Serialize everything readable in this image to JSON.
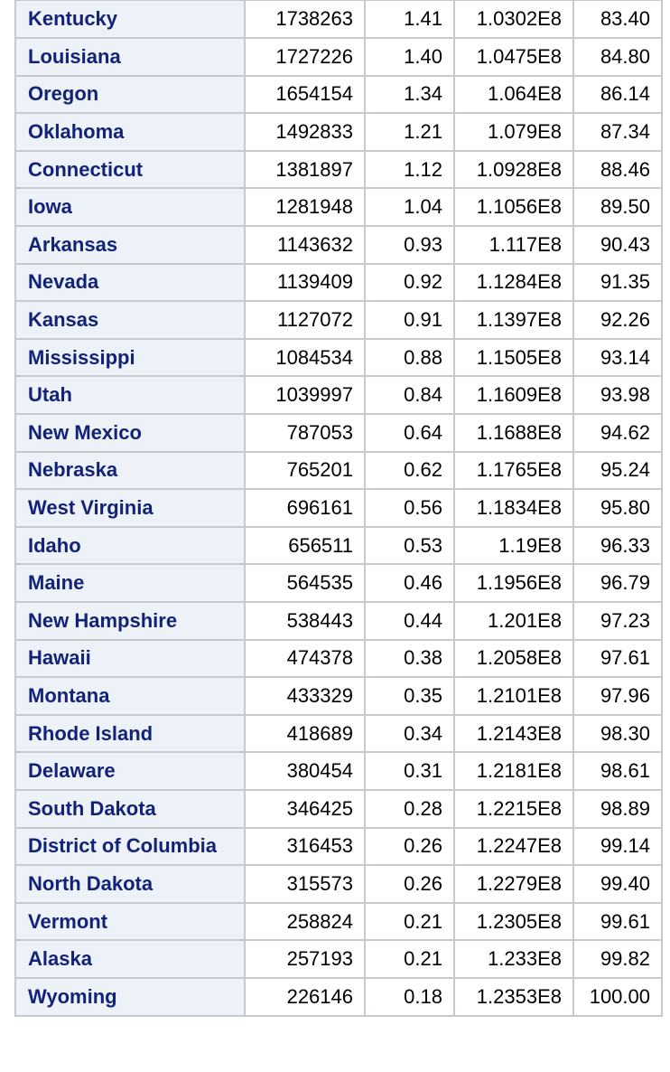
{
  "table": {
    "rows": [
      {
        "state": "Kentucky",
        "frequency": "1738263",
        "percent": "1.41",
        "cumulative_frequency": "1.0302E8",
        "cumulative_percent": "83.40"
      },
      {
        "state": "Louisiana",
        "frequency": "1727226",
        "percent": "1.40",
        "cumulative_frequency": "1.0475E8",
        "cumulative_percent": "84.80"
      },
      {
        "state": "Oregon",
        "frequency": "1654154",
        "percent": "1.34",
        "cumulative_frequency": "1.064E8",
        "cumulative_percent": "86.14"
      },
      {
        "state": "Oklahoma",
        "frequency": "1492833",
        "percent": "1.21",
        "cumulative_frequency": "1.079E8",
        "cumulative_percent": "87.34"
      },
      {
        "state": "Connecticut",
        "frequency": "1381897",
        "percent": "1.12",
        "cumulative_frequency": "1.0928E8",
        "cumulative_percent": "88.46"
      },
      {
        "state": "Iowa",
        "frequency": "1281948",
        "percent": "1.04",
        "cumulative_frequency": "1.1056E8",
        "cumulative_percent": "89.50"
      },
      {
        "state": "Arkansas",
        "frequency": "1143632",
        "percent": "0.93",
        "cumulative_frequency": "1.117E8",
        "cumulative_percent": "90.43"
      },
      {
        "state": "Nevada",
        "frequency": "1139409",
        "percent": "0.92",
        "cumulative_frequency": "1.1284E8",
        "cumulative_percent": "91.35"
      },
      {
        "state": "Kansas",
        "frequency": "1127072",
        "percent": "0.91",
        "cumulative_frequency": "1.1397E8",
        "cumulative_percent": "92.26"
      },
      {
        "state": "Mississippi",
        "frequency": "1084534",
        "percent": "0.88",
        "cumulative_frequency": "1.1505E8",
        "cumulative_percent": "93.14"
      },
      {
        "state": "Utah",
        "frequency": "1039997",
        "percent": "0.84",
        "cumulative_frequency": "1.1609E8",
        "cumulative_percent": "93.98"
      },
      {
        "state": "New Mexico",
        "frequency": "787053",
        "percent": "0.64",
        "cumulative_frequency": "1.1688E8",
        "cumulative_percent": "94.62"
      },
      {
        "state": "Nebraska",
        "frequency": "765201",
        "percent": "0.62",
        "cumulative_frequency": "1.1765E8",
        "cumulative_percent": "95.24"
      },
      {
        "state": "West Virginia",
        "frequency": "696161",
        "percent": "0.56",
        "cumulative_frequency": "1.1834E8",
        "cumulative_percent": "95.80"
      },
      {
        "state": "Idaho",
        "frequency": "656511",
        "percent": "0.53",
        "cumulative_frequency": "1.19E8",
        "cumulative_percent": "96.33"
      },
      {
        "state": "Maine",
        "frequency": "564535",
        "percent": "0.46",
        "cumulative_frequency": "1.1956E8",
        "cumulative_percent": "96.79"
      },
      {
        "state": "New Hampshire",
        "frequency": "538443",
        "percent": "0.44",
        "cumulative_frequency": "1.201E8",
        "cumulative_percent": "97.23"
      },
      {
        "state": "Hawaii",
        "frequency": "474378",
        "percent": "0.38",
        "cumulative_frequency": "1.2058E8",
        "cumulative_percent": "97.61"
      },
      {
        "state": "Montana",
        "frequency": "433329",
        "percent": "0.35",
        "cumulative_frequency": "1.2101E8",
        "cumulative_percent": "97.96"
      },
      {
        "state": "Rhode Island",
        "frequency": "418689",
        "percent": "0.34",
        "cumulative_frequency": "1.2143E8",
        "cumulative_percent": "98.30"
      },
      {
        "state": "Delaware",
        "frequency": "380454",
        "percent": "0.31",
        "cumulative_frequency": "1.2181E8",
        "cumulative_percent": "98.61"
      },
      {
        "state": "South Dakota",
        "frequency": "346425",
        "percent": "0.28",
        "cumulative_frequency": "1.2215E8",
        "cumulative_percent": "98.89"
      },
      {
        "state": "District of Columbia",
        "frequency": "316453",
        "percent": "0.26",
        "cumulative_frequency": "1.2247E8",
        "cumulative_percent": "99.14"
      },
      {
        "state": "North Dakota",
        "frequency": "315573",
        "percent": "0.26",
        "cumulative_frequency": "1.2279E8",
        "cumulative_percent": "99.40"
      },
      {
        "state": "Vermont",
        "frequency": "258824",
        "percent": "0.21",
        "cumulative_frequency": "1.2305E8",
        "cumulative_percent": "99.61"
      },
      {
        "state": "Alaska",
        "frequency": "257193",
        "percent": "0.21",
        "cumulative_frequency": "1.233E8",
        "cumulative_percent": "99.82"
      },
      {
        "state": "Wyoming",
        "frequency": "226146",
        "percent": "0.18",
        "cumulative_frequency": "1.2353E8",
        "cumulative_percent": "100.00"
      }
    ]
  },
  "colors": {
    "row_header_bg": "#edf2f9",
    "row_header_text": "#112277",
    "grid": "#c5c9d0"
  }
}
